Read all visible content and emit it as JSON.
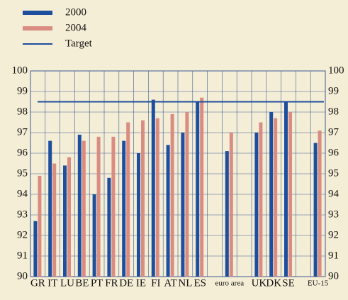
{
  "chart_data": {
    "type": "bar",
    "categories": [
      "GR",
      "IT",
      "LU",
      "BE",
      "PT",
      "FR",
      "DE",
      "IE",
      "FI",
      "AT",
      "NL",
      "ES",
      null,
      "euro area",
      null,
      "UK",
      "DK",
      "SE",
      null,
      "EU-15"
    ],
    "series": [
      {
        "name": "2000",
        "color": "#1d4f9e",
        "values": [
          92.7,
          96.6,
          95.4,
          96.9,
          94.0,
          94.8,
          96.6,
          96.0,
          98.6,
          96.4,
          97.0,
          98.5,
          null,
          96.1,
          null,
          97.0,
          98.0,
          98.5,
          null,
          96.5
        ]
      },
      {
        "name": "2004",
        "color": "#d98c82",
        "values": [
          94.9,
          95.5,
          95.8,
          96.6,
          96.8,
          96.8,
          97.5,
          97.6,
          97.7,
          97.9,
          98.0,
          98.7,
          null,
          97.0,
          null,
          97.5,
          97.7,
          98.0,
          null,
          97.1
        ]
      }
    ],
    "target": {
      "name": "Target",
      "value": 98.5,
      "color": "#1d4f9e"
    },
    "ylim": [
      90,
      100
    ],
    "yticks": [
      90,
      91,
      92,
      93,
      94,
      95,
      96,
      97,
      98,
      99,
      100
    ],
    "grid": true
  }
}
